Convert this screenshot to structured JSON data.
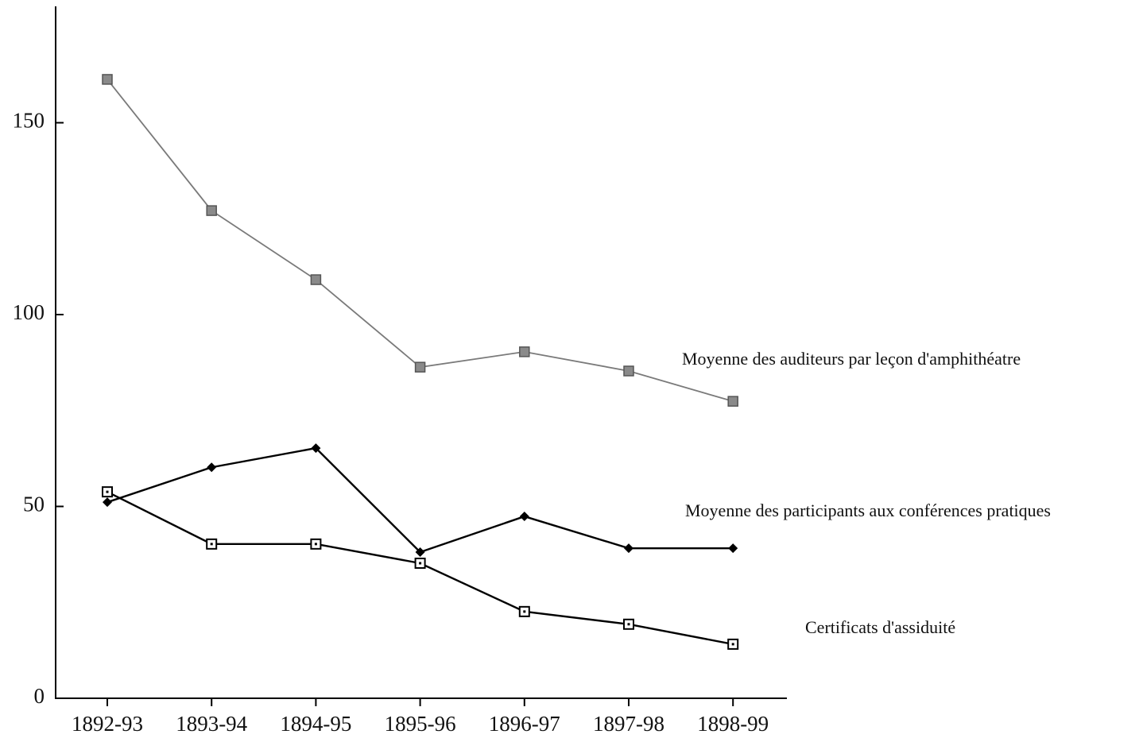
{
  "chart_data": {
    "type": "line",
    "categories": [
      "1892-93",
      "1893-94",
      "1894-95",
      "1895-96",
      "1896-97",
      "1897-98",
      "1898-99"
    ],
    "series": [
      {
        "name": "Moyenne des auditeurs par leçon d'amphithéatre",
        "color": "#7a7a7a",
        "marker": "square-filled",
        "values": [
          161.3,
          127.1,
          109.1,
          86.3,
          90.3,
          85.3,
          77.4
        ]
      },
      {
        "name": "Moyenne des participants aux conférences pratiques",
        "color": "#000000",
        "marker": "diamond",
        "values": [
          51.1,
          60.2,
          65.2,
          38.1,
          47.4,
          39.1,
          39.1
        ]
      },
      {
        "name": "Certificats d'assiduité",
        "color": "#000000",
        "marker": "square-open",
        "values": [
          53.8,
          40.2,
          40.2,
          35.2,
          22.6,
          19.3,
          14.1
        ]
      }
    ],
    "ylim": [
      0,
      180
    ],
    "yticks": [
      0,
      50,
      100,
      150
    ],
    "grid": false
  }
}
